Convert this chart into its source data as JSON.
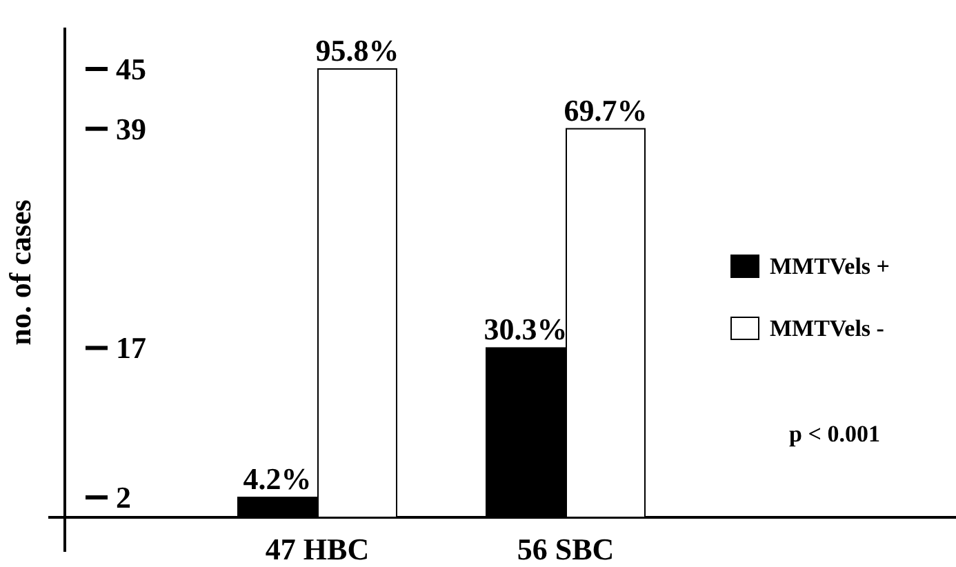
{
  "chart_data": {
    "type": "bar",
    "ylabel": "no. of cases",
    "categories": [
      "47 HBC",
      "56 SBC"
    ],
    "series": [
      {
        "name": "MMTVels +",
        "color": "#000000",
        "values": [
          2,
          17
        ]
      },
      {
        "name": "MMTVels -",
        "color": "#ffffff",
        "values": [
          45,
          39
        ]
      }
    ],
    "ylim": [
      0,
      45
    ],
    "yticks": [
      2,
      17,
      39,
      45
    ],
    "grid": false,
    "legend": "right",
    "annotations": [
      {
        "text": "4.2%",
        "x": "47 HBC",
        "y": 2
      },
      {
        "text": "95.8%",
        "x": "47 HBC",
        "y": 45
      },
      {
        "text": "30.3%",
        "x": "56 SBC",
        "y": 17
      },
      {
        "text": "69.7%",
        "x": "56 SBC",
        "y": 39
      },
      "p < 0.001"
    ]
  }
}
